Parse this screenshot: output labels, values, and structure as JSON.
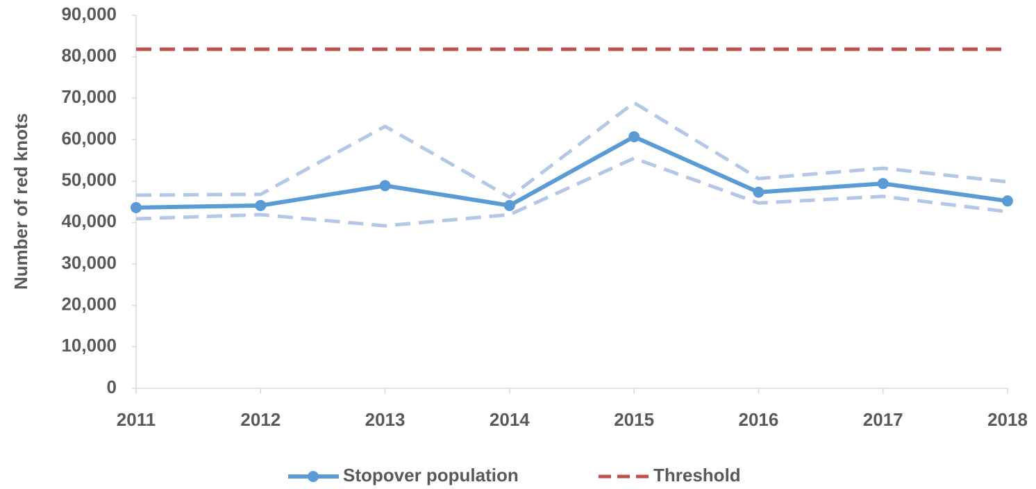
{
  "chart_data": {
    "type": "line",
    "y_label": "Number of red knots",
    "categories": [
      "2011",
      "2012",
      "2013",
      "2014",
      "2015",
      "2016",
      "2017",
      "2018"
    ],
    "ylim": [
      0,
      90000
    ],
    "yticks": [
      0,
      {
        "value": 10000,
        "label": "10,000"
      },
      {
        "value": 20000,
        "label": "20,000"
      },
      {
        "value": 30000,
        "label": "30,000"
      },
      {
        "value": 40000,
        "label": "40,000"
      },
      {
        "value": 50000,
        "label": "50,000"
      },
      {
        "value": 60000,
        "label": "60,000"
      },
      {
        "value": 70000,
        "label": "70,000"
      },
      {
        "value": 80000,
        "label": "80,000"
      },
      {
        "value": 90000,
        "label": "90,000"
      }
    ],
    "grid": false,
    "legend": "bottom",
    "series": [
      {
        "color": "#b4c7e7",
        "dash": true,
        "marker": false,
        "values": [
          46600,
          46800,
          63200,
          46100,
          68900,
          50600,
          53100,
          49800
        ]
      },
      {
        "color": "#b4c7e7",
        "dash": true,
        "marker": false,
        "values": [
          40900,
          41900,
          39200,
          41900,
          55500,
          44700,
          46300,
          42600
        ]
      },
      {
        "name": "Stopover population",
        "color": "#5b9bd5",
        "dash": false,
        "marker": true,
        "values": [
          43600,
          44100,
          48900,
          44100,
          60700,
          47300,
          49400,
          45200
        ]
      },
      {
        "name": "Threshold",
        "color": "#c0504d",
        "dash": true,
        "marker": false,
        "values": [
          81800,
          81800,
          81800,
          81800,
          81800,
          81800,
          81800,
          81800
        ]
      }
    ]
  }
}
